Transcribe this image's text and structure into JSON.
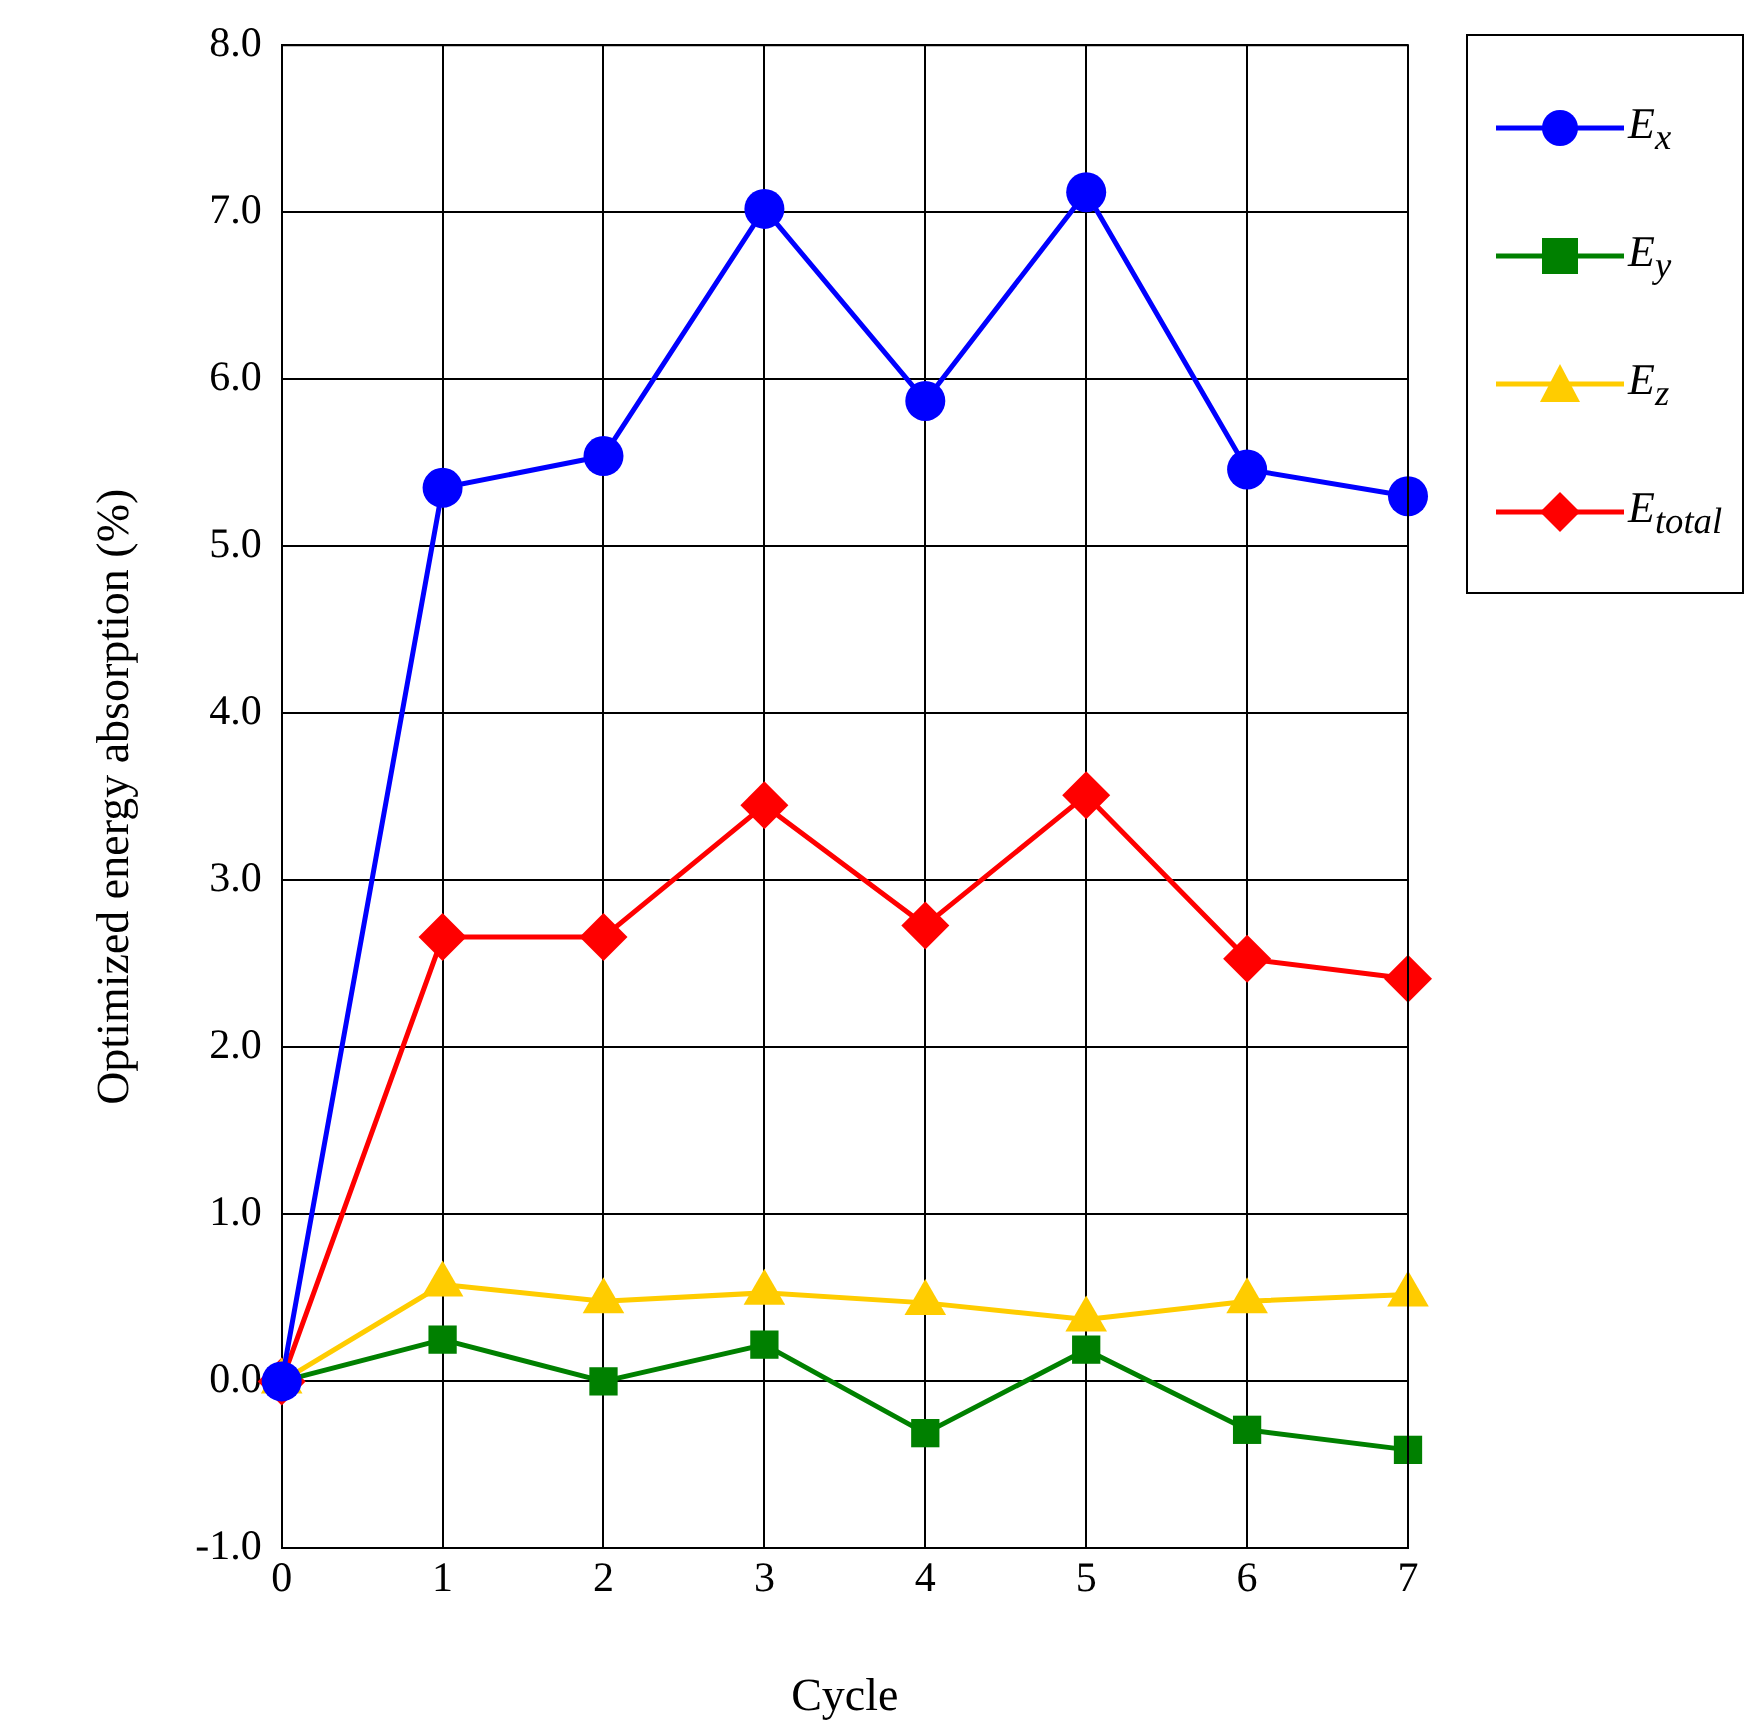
{
  "chart_data": {
    "type": "line",
    "xlabel": "Cycle",
    "ylabel": "Optimized energy absorption (%)",
    "x": [
      0,
      1,
      2,
      3,
      4,
      5,
      6,
      7
    ],
    "xlim": [
      0,
      7
    ],
    "xticks": [
      0,
      1,
      2,
      3,
      4,
      5,
      6,
      7
    ],
    "ylim": [
      -1,
      8
    ],
    "yticks": [
      {
        "value": -1,
        "label": "-1.0"
      },
      {
        "value": 0,
        "label": "0.0"
      },
      {
        "value": 1,
        "label": "1.0"
      },
      {
        "value": 2,
        "label": "2.0"
      },
      {
        "value": 3,
        "label": "3.0"
      },
      {
        "value": 4,
        "label": "4.0"
      },
      {
        "value": 5,
        "label": "5.0"
      },
      {
        "value": 6,
        "label": "6.0"
      },
      {
        "value": 7,
        "label": "7.0"
      },
      {
        "value": 8,
        "label": "8.0"
      }
    ],
    "grid": true,
    "legend": "top right",
    "line_style": "solid",
    "series": [
      {
        "name": "E$_{x}$",
        "color": "#0000ff",
        "marker": "circle",
        "values": [
          0,
          5.35,
          5.54,
          7.02,
          5.87,
          7.12,
          5.46,
          5.3
        ]
      },
      {
        "name": "E$_{y}$",
        "color": "#008000",
        "marker": "square",
        "values": [
          0,
          0.25,
          0,
          0.22,
          -0.31,
          0.19,
          -0.29,
          -0.41
        ]
      },
      {
        "name": "E$_{z}$",
        "color": "#ffcc00",
        "marker": "triangle",
        "values": [
          0,
          0.58,
          0.48,
          0.53,
          0.47,
          0.37,
          0.48,
          0.52
        ]
      },
      {
        "name": "E$_{total}$",
        "color": "#ff0000",
        "marker": "diamond",
        "values": [
          0,
          2.66,
          2.66,
          3.45,
          2.73,
          3.51,
          2.53,
          2.41
        ]
      }
    ]
  }
}
